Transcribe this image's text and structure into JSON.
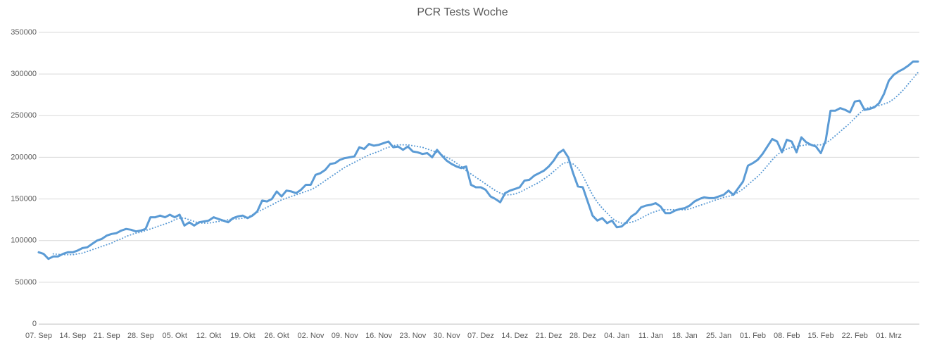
{
  "chart_data": {
    "type": "line",
    "title": "PCR Tests Woche",
    "categories": [
      "07. Sep",
      null,
      null,
      null,
      null,
      null,
      null,
      "14. Sep",
      null,
      null,
      null,
      null,
      null,
      null,
      "21. Sep",
      null,
      null,
      null,
      null,
      null,
      null,
      "28. Sep",
      null,
      null,
      null,
      null,
      null,
      null,
      "05. Okt",
      null,
      null,
      null,
      null,
      null,
      null,
      "12. Okt",
      null,
      null,
      null,
      null,
      null,
      null,
      "19. Okt",
      null,
      null,
      null,
      null,
      null,
      null,
      "26. Okt",
      null,
      null,
      null,
      null,
      null,
      null,
      "02. Nov",
      null,
      null,
      null,
      null,
      null,
      null,
      "09. Nov",
      null,
      null,
      null,
      null,
      null,
      null,
      "16. Nov",
      null,
      null,
      null,
      null,
      null,
      null,
      "23. Nov",
      null,
      null,
      null,
      null,
      null,
      null,
      "30. Nov",
      null,
      null,
      null,
      null,
      null,
      null,
      "07. Dez",
      null,
      null,
      null,
      null,
      null,
      null,
      "14. Dez",
      null,
      null,
      null,
      null,
      null,
      null,
      "21. Dez",
      null,
      null,
      null,
      null,
      null,
      null,
      "28. Dez",
      null,
      null,
      null,
      null,
      null,
      null,
      "04. Jan",
      null,
      null,
      null,
      null,
      null,
      null,
      "11. Jan",
      null,
      null,
      null,
      null,
      null,
      null,
      "18. Jan",
      null,
      null,
      null,
      null,
      null,
      null,
      "25. Jan",
      null,
      null,
      null,
      null,
      null,
      null,
      "01. Feb",
      null,
      null,
      null,
      null,
      null,
      null,
      "08. Feb",
      null,
      null,
      null,
      null,
      null,
      null,
      "15. Feb",
      null,
      null,
      null,
      null,
      null,
      null,
      "22. Feb",
      null,
      null,
      null,
      null,
      null,
      null,
      "01. Mrz",
      null,
      null,
      null,
      null,
      null,
      null
    ],
    "series": [
      {
        "color": "#5b9bd5",
        "line_style": "solid",
        "values": [
          86000,
          84000,
          78000,
          81000,
          81000,
          84000,
          86000,
          86000,
          88000,
          91000,
          92000,
          96000,
          100000,
          102000,
          106000,
          108000,
          109000,
          112000,
          114000,
          113000,
          111000,
          112000,
          114000,
          128000,
          128000,
          130000,
          128000,
          131000,
          128000,
          131000,
          118000,
          122000,
          118000,
          122000,
          123000,
          124000,
          128000,
          126000,
          124000,
          122000,
          127000,
          129000,
          130000,
          127000,
          130000,
          135000,
          148000,
          147000,
          150000,
          159000,
          153000,
          160000,
          159000,
          157000,
          161000,
          167000,
          167000,
          179000,
          181000,
          185000,
          192000,
          193000,
          197000,
          199000,
          200000,
          201000,
          212000,
          210000,
          216000,
          214000,
          215000,
          217000,
          219000,
          212000,
          213000,
          209000,
          213000,
          207000,
          206000,
          204000,
          205000,
          200000,
          209000,
          202000,
          196000,
          192000,
          189000,
          187000,
          189000,
          167000,
          164000,
          164000,
          161000,
          153000,
          150000,
          146000,
          157000,
          160000,
          162000,
          164000,
          172000,
          173000,
          178000,
          181000,
          184000,
          189000,
          196000,
          205000,
          209000,
          200000,
          181000,
          165000,
          164000,
          147000,
          130000,
          124000,
          127000,
          121000,
          124000,
          116000,
          117000,
          122000,
          129000,
          133000,
          140000,
          142000,
          143000,
          145000,
          141000,
          133000,
          133000,
          136000,
          138000,
          139000,
          142000,
          147000,
          150000,
          152000,
          151000,
          151000,
          153000,
          155000,
          160000,
          155000,
          163000,
          171000,
          190000,
          193000,
          197000,
          204000,
          213000,
          222000,
          219000,
          206000,
          221000,
          219000,
          206000,
          224000,
          218000,
          215000,
          213000,
          205000,
          220000,
          256000,
          256000,
          259000,
          257000,
          254000,
          267000,
          268000,
          257000,
          258000,
          260000,
          265000,
          276000,
          292000,
          299000,
          303000,
          306000,
          310000,
          315000,
          315000
        ]
      },
      {
        "color": "#5b9bd5",
        "line_style": "dotted",
        "values": [
          null,
          null,
          null,
          84000,
          83500,
          83000,
          83000,
          83000,
          84000,
          85000,
          87000,
          89000,
          91000,
          93000,
          95000,
          97000,
          100000,
          102000,
          105000,
          107000,
          109000,
          110000,
          112000,
          114000,
          116000,
          118000,
          120000,
          122000,
          125000,
          127000,
          127000,
          125000,
          123000,
          121000,
          121000,
          121000,
          122000,
          123000,
          124000,
          125000,
          126000,
          126000,
          127000,
          128000,
          131000,
          134000,
          137000,
          140000,
          143000,
          146000,
          149000,
          151000,
          153000,
          155000,
          157000,
          159000,
          161000,
          164000,
          168000,
          172000,
          176000,
          180000,
          184000,
          188000,
          191000,
          194000,
          197000,
          200000,
          203000,
          205000,
          207000,
          210000,
          212000,
          214000,
          215000,
          215000,
          215000,
          214000,
          213000,
          212000,
          210000,
          208000,
          206000,
          203000,
          200000,
          197000,
          193000,
          189000,
          184000,
          180000,
          176000,
          172000,
          168000,
          164000,
          160000,
          157000,
          155000,
          155000,
          156000,
          158000,
          161000,
          164000,
          167000,
          170000,
          174000,
          178000,
          183000,
          188000,
          193000,
          194000,
          192000,
          187000,
          178000,
          166000,
          155000,
          146000,
          139000,
          133000,
          127000,
          123000,
          121000,
          121000,
          122000,
          124000,
          127000,
          130000,
          133000,
          135000,
          137000,
          137000,
          137000,
          137000,
          137000,
          137000,
          138000,
          140000,
          142000,
          144000,
          146000,
          148000,
          150000,
          152000,
          153000,
          155000,
          158000,
          162000,
          167000,
          172000,
          177000,
          183000,
          190000,
          197000,
          203000,
          207000,
          210000,
          212000,
          213000,
          214000,
          215000,
          215000,
          215000,
          215000,
          217000,
          221000,
          226000,
          231000,
          236000,
          241000,
          247000,
          253000,
          258000,
          260000,
          261000,
          262000,
          264000,
          266000,
          270000,
          275000,
          281000,
          288000,
          295000,
          302000
        ]
      }
    ],
    "ylim": [
      0,
      350000
    ],
    "yticks": [
      0,
      50000,
      100000,
      150000,
      200000,
      250000,
      300000,
      350000
    ],
    "grid": true
  }
}
